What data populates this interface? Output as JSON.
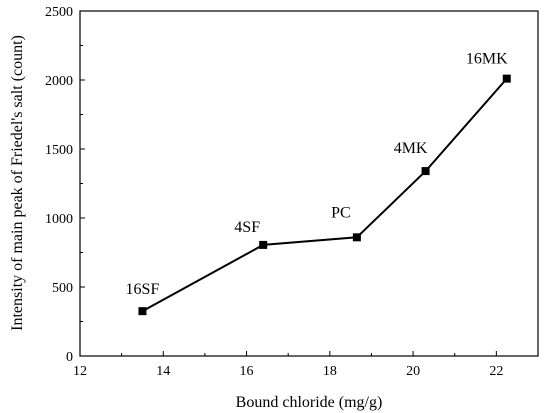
{
  "chart_data": {
    "type": "line",
    "title": "",
    "xlabel": "Bound chloride (mg/g)",
    "ylabel": "Intensity of main peak of Friedel's salt (count)",
    "xlim": [
      12,
      23
    ],
    "ylim": [
      0,
      2500
    ],
    "xticks": [
      12,
      14,
      16,
      18,
      20,
      22
    ],
    "yticks": [
      0,
      500,
      1000,
      1500,
      2000,
      2500
    ],
    "grid": false,
    "legend": "none",
    "marker": "square",
    "color": "#000000",
    "points": [
      {
        "label": "16SF",
        "x": 13.5,
        "y": 325
      },
      {
        "label": "4SF",
        "x": 16.4,
        "y": 805
      },
      {
        "label": "PC",
        "x": 18.65,
        "y": 860
      },
      {
        "label": "4MK",
        "x": 20.3,
        "y": 1340
      },
      {
        "label": "16MK",
        "x": 22.25,
        "y": 2010
      }
    ]
  }
}
